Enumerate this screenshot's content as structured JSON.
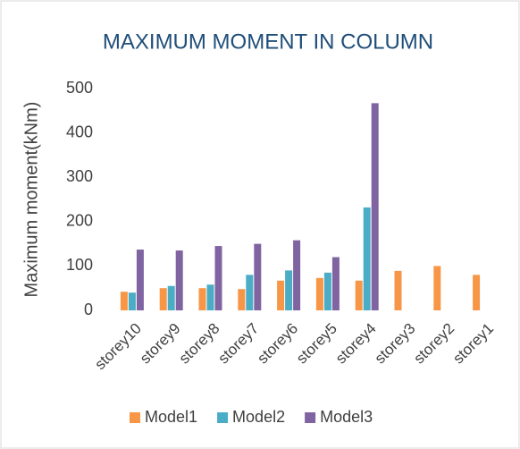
{
  "chart_data": {
    "type": "bar",
    "title": "MAXIMUM MOMENT IN COLUMN",
    "y_label": "Maximum moment(kNm)",
    "categories": [
      "storey10",
      "storey9",
      "storey8",
      "storey7",
      "storey6",
      "storey5",
      "storey4",
      "storey3",
      "storey2",
      "storey1"
    ],
    "series": [
      {
        "name": "Model1",
        "color": "#f79646",
        "values": [
          42,
          50,
          50,
          48,
          67,
          73,
          67,
          89,
          100,
          80
        ]
      },
      {
        "name": "Model2",
        "color": "#4bacc6",
        "values": [
          40,
          55,
          58,
          80,
          90,
          85,
          232,
          null,
          null,
          null
        ]
      },
      {
        "name": "Model3",
        "color": "#8064a2",
        "values": [
          137,
          135,
          145,
          150,
          158,
          120,
          467,
          null,
          null,
          null
        ]
      }
    ],
    "ylim": [
      0,
      500
    ],
    "yticks": [
      0,
      100,
      200,
      300,
      400,
      500
    ],
    "grid": false,
    "legend": "bottom"
  }
}
